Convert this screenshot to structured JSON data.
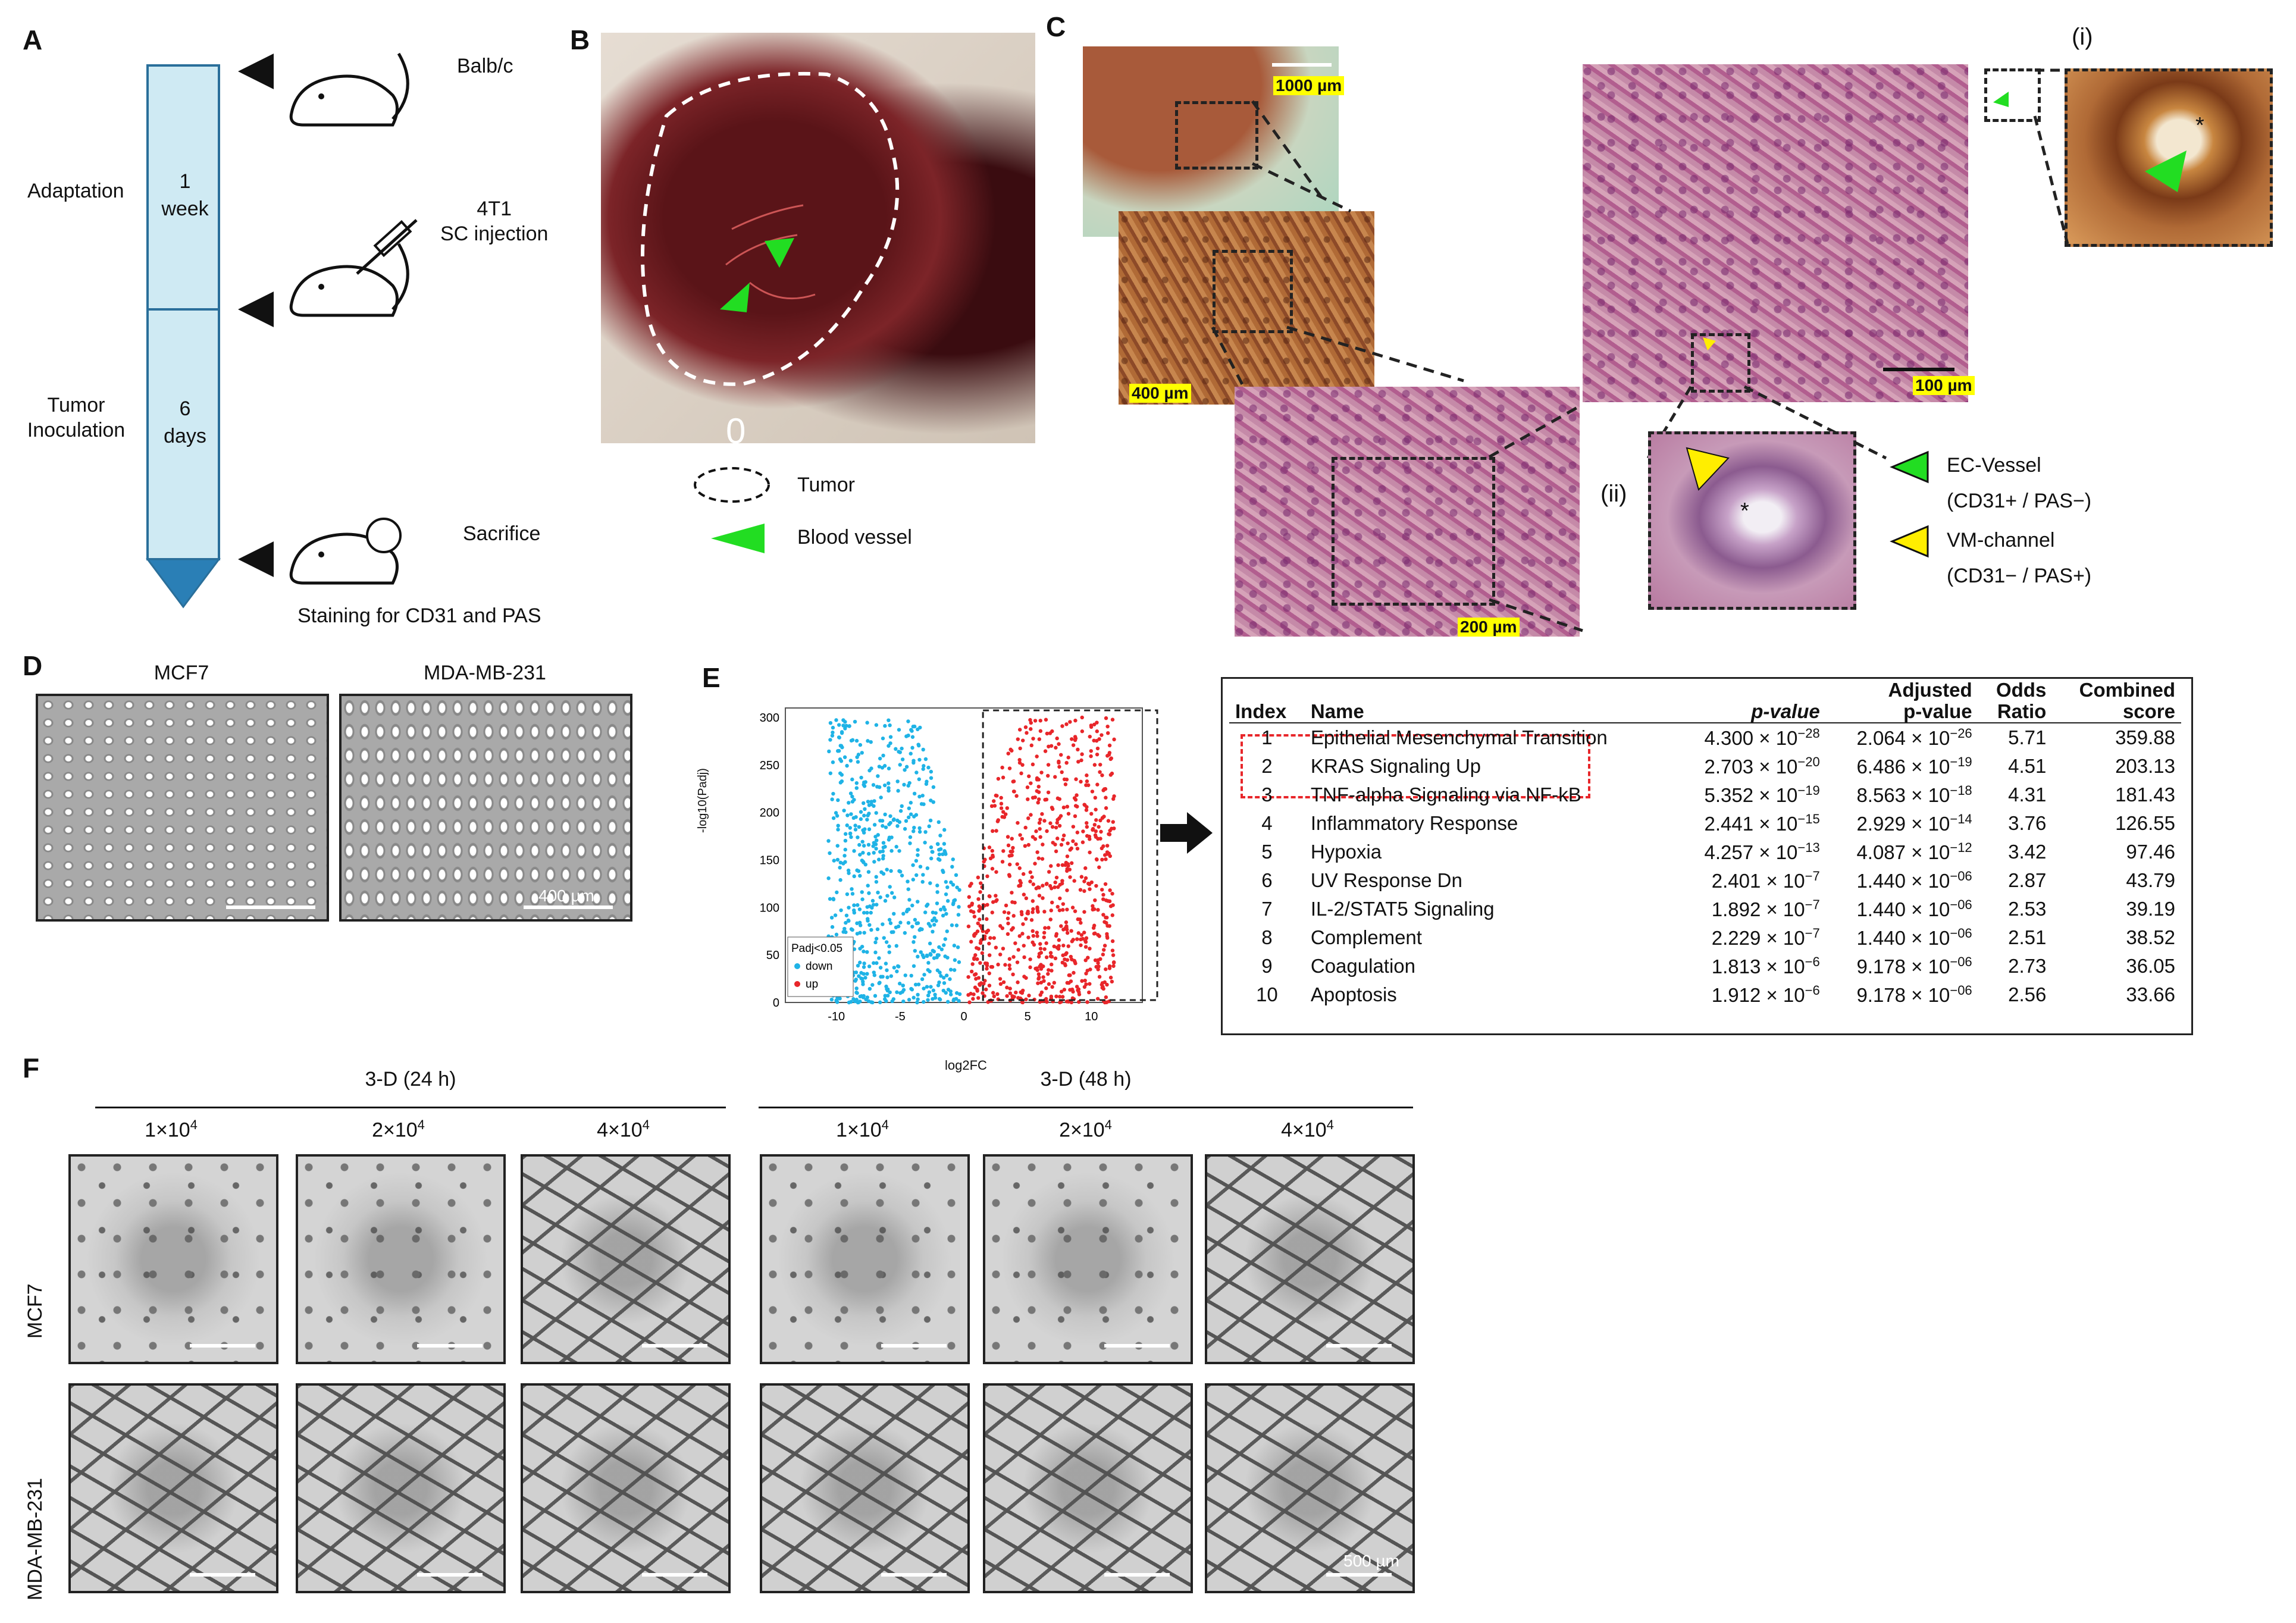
{
  "panels": {
    "A": "A",
    "B": "B",
    "C": "C",
    "D": "D",
    "E": "E",
    "F": "F"
  },
  "panelA": {
    "mouse_strain": "Balb/c",
    "injection": "4T1\nSC injection",
    "sacrifice": "Sacrifice",
    "staining": "Staining for CD31 and PAS",
    "phase1_label": "Adaptation",
    "phase1_duration": "1\nweek",
    "phase2_label": "Tumor\nInoculation",
    "phase2_duration": "6\ndays"
  },
  "panelB": {
    "legend_tumor": "Tumor",
    "legend_vessel": "Blood vessel",
    "watermark": "0"
  },
  "panelC": {
    "scale_1000": "1000 µm",
    "scale_400": "400 µm",
    "scale_200": "200 µm",
    "scale_100": "100 µm",
    "inset_i": "(i)",
    "inset_ii": "(ii)",
    "legend_ec": "EC-Vessel\n(CD31+ / PAS−)",
    "legend_vm": "VM-channel\n(CD31− / PAS+)",
    "asterisk": "*"
  },
  "panelD": {
    "cell1": "MCF7",
    "cell2": "MDA-MB-231",
    "scale": "400 µm"
  },
  "panelE": {
    "volcano": {
      "ylabel": "-log10(Padj)",
      "xlabel": "log2FC",
      "legend_title": "Padj<0.05",
      "legend_down": "down",
      "legend_up": "up",
      "xticks": [
        "-10",
        "-5",
        "0",
        "5",
        "10"
      ],
      "yticks": [
        "0",
        "50",
        "100",
        "150",
        "200",
        "250",
        "300"
      ]
    },
    "table": {
      "headers": [
        "Index",
        "Name",
        "p-value",
        "Adjusted\np-value",
        "Odds\nRatio",
        "Combined\nscore"
      ],
      "rows": [
        {
          "index": "1",
          "name": "Epithelial Mesenchymal Transition",
          "p_mant": "4.300 × 10",
          "p_exp": "−28",
          "adj_mant": "2.064 × 10",
          "adj_exp": "−26",
          "odds": "5.71",
          "score": "359.88"
        },
        {
          "index": "2",
          "name": "KRAS Signaling Up",
          "p_mant": "2.703 × 10",
          "p_exp": "−20",
          "adj_mant": "6.486 × 10",
          "adj_exp": "−19",
          "odds": "4.51",
          "score": "203.13"
        },
        {
          "index": "3",
          "name": "TNF-alpha Signaling via NF-kB",
          "p_mant": "5.352 × 10",
          "p_exp": "−19",
          "adj_mant": "8.563 × 10",
          "adj_exp": "−18",
          "odds": "4.31",
          "score": "181.43"
        },
        {
          "index": "4",
          "name": "Inflammatory Response",
          "p_mant": "2.441 × 10",
          "p_exp": "−15",
          "adj_mant": "2.929 × 10",
          "adj_exp": "−14",
          "odds": "3.76",
          "score": "126.55"
        },
        {
          "index": "5",
          "name": "Hypoxia",
          "p_mant": "4.257 × 10",
          "p_exp": "−13",
          "adj_mant": "4.087 × 10",
          "adj_exp": "−12",
          "odds": "3.42",
          "score": "97.46"
        },
        {
          "index": "6",
          "name": "UV Response Dn",
          "p_mant": "2.401 × 10",
          "p_exp": "−7",
          "adj_mant": "1.440 × 10",
          "adj_exp": "−06",
          "odds": "2.87",
          "score": "43.79"
        },
        {
          "index": "7",
          "name": "IL-2/STAT5 Signaling",
          "p_mant": "1.892 × 10",
          "p_exp": "−7",
          "adj_mant": "1.440 × 10",
          "adj_exp": "−06",
          "odds": "2.53",
          "score": "39.19"
        },
        {
          "index": "8",
          "name": "Complement",
          "p_mant": "2.229 × 10",
          "p_exp": "−7",
          "adj_mant": "1.440 × 10",
          "adj_exp": "−06",
          "odds": "2.51",
          "score": "38.52"
        },
        {
          "index": "9",
          "name": "Coagulation",
          "p_mant": "1.813 × 10",
          "p_exp": "−6",
          "adj_mant": "9.178 × 10",
          "adj_exp": "−06",
          "odds": "2.73",
          "score": "36.05"
        },
        {
          "index": "10",
          "name": "Apoptosis",
          "p_mant": "1.912 × 10",
          "p_exp": "−6",
          "adj_mant": "9.178 × 10",
          "adj_exp": "−06",
          "odds": "2.56",
          "score": "33.66"
        }
      ]
    }
  },
  "panelF": {
    "group1": "3-D (24 h)",
    "group2": "3-D (48 h)",
    "density1": "1×10",
    "density2": "2×10",
    "density3": "4×10",
    "density_exp": "4",
    "row1": "MCF7",
    "row2": "MDA-MB-231",
    "scale": "500 µm"
  },
  "colors": {
    "down": "#1fb3e6",
    "up": "#e8262a",
    "timeline": "#cfeaf3",
    "timeline_tip": "#2a7fb6",
    "ec_arrow": "#22dd22",
    "vm_arrow": "#ffee00",
    "highlight_box": "#e8262a"
  }
}
